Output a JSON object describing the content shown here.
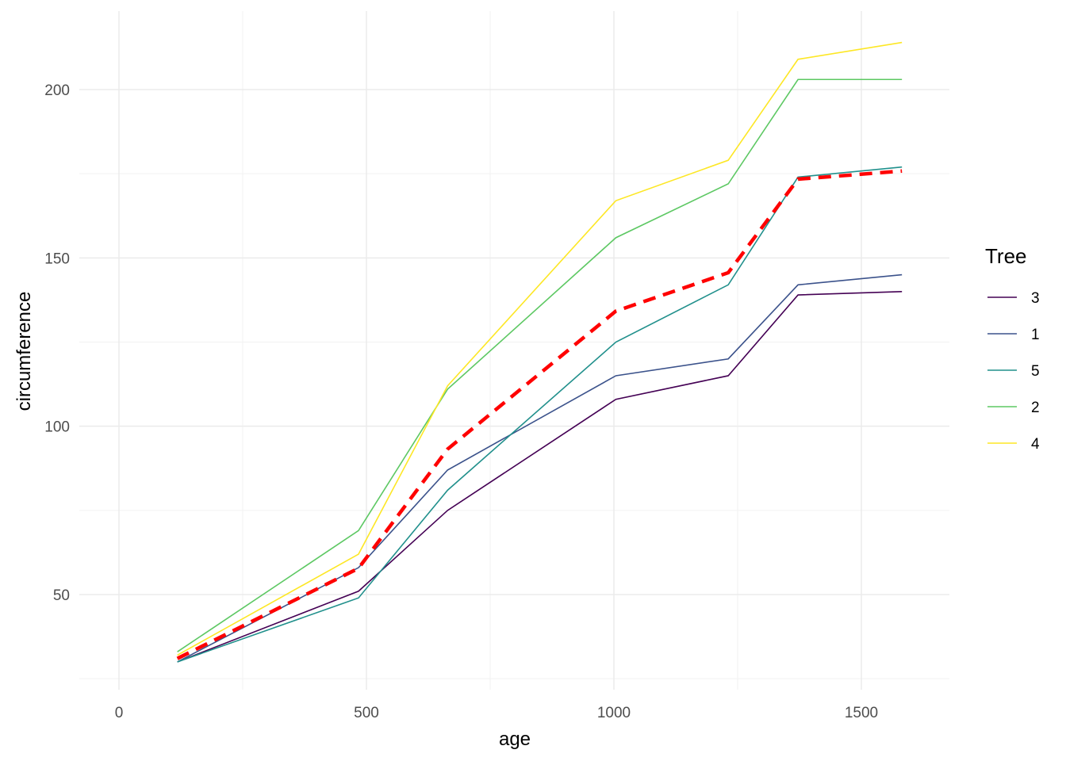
{
  "chart_data": {
    "type": "line",
    "xlabel": "age",
    "ylabel": "circumference",
    "x": [
      118,
      484,
      664,
      1004,
      1231,
      1372,
      1582
    ],
    "xlim": [
      -80,
      1680
    ],
    "ylim": [
      22,
      222
    ],
    "xticks": [
      0,
      500,
      1000,
      1500
    ],
    "yticks": [
      50,
      100,
      150,
      200
    ],
    "grid": true,
    "legend": {
      "title": "Tree",
      "position": "right"
    },
    "series": [
      {
        "name": "3",
        "color": "#440154",
        "values": [
          30,
          51,
          75,
          108,
          115,
          139,
          140
        ]
      },
      {
        "name": "1",
        "color": "#3B528B",
        "values": [
          30,
          58,
          87,
          115,
          120,
          142,
          145
        ]
      },
      {
        "name": "5",
        "color": "#21908C",
        "values": [
          30,
          49,
          81,
          125,
          142,
          174,
          177
        ]
      },
      {
        "name": "2",
        "color": "#5DC863",
        "values": [
          33,
          69,
          111,
          156,
          172,
          203,
          203
        ]
      },
      {
        "name": "4",
        "color": "#FDE725",
        "values": [
          32,
          62,
          112,
          167,
          179,
          209,
          214
        ]
      }
    ],
    "overlay": {
      "style": "dashed",
      "color": "#FF0000",
      "values": [
        31,
        57.8,
        93.2,
        134.2,
        145.6,
        173.4,
        175.8
      ]
    }
  }
}
